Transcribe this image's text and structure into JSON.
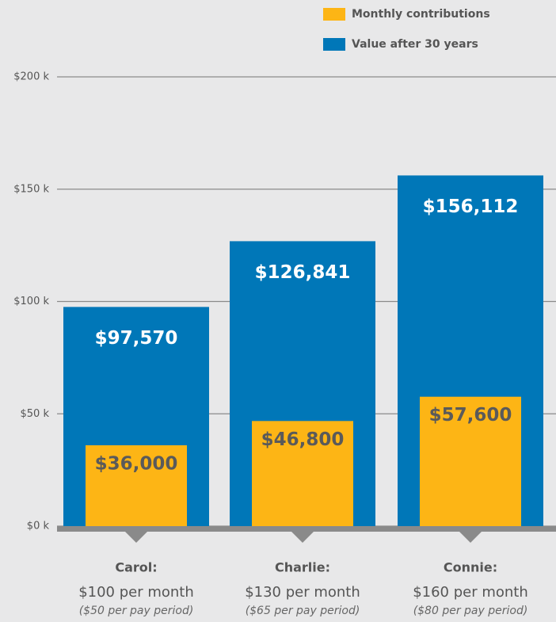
{
  "chart_data": {
    "type": "bar",
    "categories": [
      "Carol:",
      "Charlie:",
      "Connie:"
    ],
    "category_notes": [
      [
        "$100 per month",
        "($50 per pay period)"
      ],
      [
        "$130 per month",
        "($65 per pay period)"
      ],
      [
        "$160 per month",
        "($80 per pay period)"
      ]
    ],
    "series": [
      {
        "name": "Monthly contributions",
        "color": "#fdb515",
        "values": [
          36000,
          46800,
          57600
        ],
        "value_labels": [
          "$36,000",
          "$46,800",
          "$57,600"
        ]
      },
      {
        "name": "Value after 30 years",
        "color": "#0077b8",
        "values": [
          97570,
          126841,
          156112
        ],
        "value_labels": [
          "$97,570",
          "$126,841",
          "$156,112"
        ]
      }
    ],
    "ylim": [
      0,
      200000
    ],
    "yticks": [
      {
        "value": 0,
        "label": "$0 k"
      },
      {
        "value": 50000,
        "label": "$50 k"
      },
      {
        "value": 100000,
        "label": "$100 k"
      },
      {
        "value": 150000,
        "label": "$150 k"
      },
      {
        "value": 200000,
        "label": "$200 k"
      }
    ],
    "grid": true,
    "legend": "top-right"
  }
}
